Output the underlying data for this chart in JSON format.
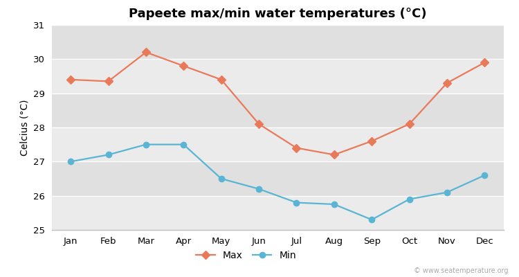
{
  "title": "Papeete max/min water temperatures (°C)",
  "ylabel": "Celcius (°C)",
  "months": [
    "Jan",
    "Feb",
    "Mar",
    "Apr",
    "May",
    "Jun",
    "Jul",
    "Aug",
    "Sep",
    "Oct",
    "Nov",
    "Dec"
  ],
  "max_temps": [
    29.4,
    29.35,
    30.2,
    29.8,
    29.4,
    28.1,
    27.4,
    27.2,
    27.6,
    28.1,
    29.3,
    29.9
  ],
  "min_temps": [
    27.0,
    27.2,
    27.5,
    27.5,
    26.5,
    26.2,
    25.8,
    25.75,
    25.3,
    25.9,
    26.1,
    26.6
  ],
  "max_color": "#e87a5a",
  "min_color": "#5ab4d4",
  "figure_bg": "#ffffff",
  "plot_bg_light": "#ebebeb",
  "plot_bg_dark": "#e0e0e0",
  "grid_color": "#ffffff",
  "ylim": [
    25,
    31
  ],
  "yticks": [
    25,
    26,
    27,
    28,
    29,
    30,
    31
  ],
  "legend_label_max": "Max",
  "legend_label_min": "Min",
  "watermark": "© www.seatemperature.org",
  "title_fontsize": 13,
  "label_fontsize": 10,
  "tick_fontsize": 9.5,
  "max_marker": "D",
  "min_marker": "o",
  "marker_size": 6,
  "line_width": 1.6
}
